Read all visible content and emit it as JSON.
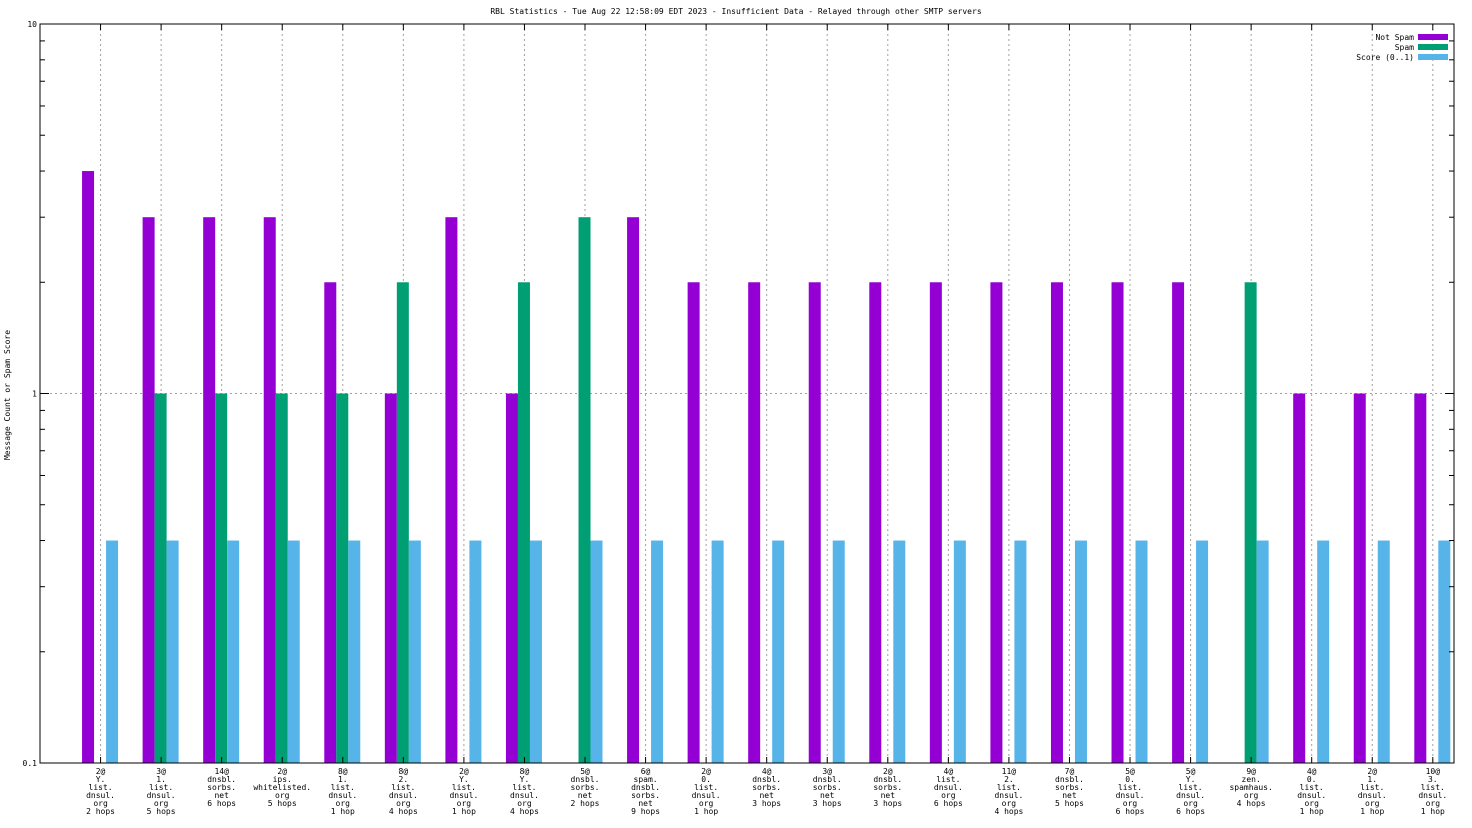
{
  "chart_data": {
    "type": "bar",
    "title": "RBL Statistics - Tue Aug 22 12:58:09 EDT 2023 - Insufficient Data - Relayed through other SMTP servers",
    "xlabel": "",
    "ylabel": "Message Count or Spam Score",
    "yscale": "log",
    "ylim": [
      0.1,
      10
    ],
    "yticks": [
      "0.1",
      "1",
      "10"
    ],
    "grid": true,
    "legend_position": "top-right",
    "colors": {
      "not_spam": "#9400d3",
      "spam": "#009e73",
      "score": "#56b4e9"
    },
    "categories": [
      [
        "2@",
        "Y.",
        "list.",
        "dnsul.",
        "org",
        "2 hops"
      ],
      [
        "3@",
        "1.",
        "list.",
        "dnsul.",
        "org",
        "5 hops"
      ],
      [
        "14@",
        "dnsbl.",
        "sorbs.",
        "net",
        "6 hops"
      ],
      [
        "2@",
        "ips.",
        "whitelisted.",
        "org",
        "5 hops"
      ],
      [
        "8@",
        "1.",
        "list.",
        "dnsul.",
        "org",
        "1 hop"
      ],
      [
        "8@",
        "2.",
        "list.",
        "dnsul.",
        "org",
        "4 hops"
      ],
      [
        "2@",
        "Y.",
        "list.",
        "dnsul.",
        "org",
        "1 hop"
      ],
      [
        "8@",
        "Y.",
        "list.",
        "dnsul.",
        "org",
        "4 hops"
      ],
      [
        "5@",
        "dnsbl.",
        "sorbs.",
        "net",
        "2 hops"
      ],
      [
        "6@",
        "spam.",
        "dnsbl.",
        "sorbs.",
        "net",
        "9 hops"
      ],
      [
        "2@",
        "0.",
        "list.",
        "dnsul.",
        "org",
        "1 hop"
      ],
      [
        "4@",
        "dnsbl.",
        "sorbs.",
        "net",
        "3 hops"
      ],
      [
        "3@",
        "dnsbl.",
        "sorbs.",
        "net",
        "3 hops"
      ],
      [
        "2@",
        "dnsbl.",
        "sorbs.",
        "net",
        "3 hops"
      ],
      [
        "4@",
        "list.",
        "dnsul.",
        "org",
        "6 hops"
      ],
      [
        "11@",
        "2.",
        "list.",
        "dnsul.",
        "org",
        "4 hops"
      ],
      [
        "7@",
        "dnsbl.",
        "sorbs.",
        "net",
        "5 hops"
      ],
      [
        "5@",
        "0.",
        "list.",
        "dnsul.",
        "org",
        "6 hops"
      ],
      [
        "5@",
        "Y.",
        "list.",
        "dnsul.",
        "org",
        "6 hops"
      ],
      [
        "9@",
        "zen.",
        "spamhaus.",
        "org",
        "4 hops"
      ],
      [
        "4@",
        "0.",
        "list.",
        "dnsul.",
        "org",
        "1 hop"
      ],
      [
        "2@",
        "1.",
        "list.",
        "dnsul.",
        "org",
        "1 hop"
      ],
      [
        "10@",
        "3.",
        "list.",
        "dnsul.",
        "org",
        "1 hop"
      ]
    ],
    "series": [
      {
        "name": "Not Spam",
        "color": "#9400d3",
        "values": [
          4,
          3,
          3,
          3,
          2,
          1,
          3,
          1,
          0,
          3,
          2,
          2,
          2,
          2,
          2,
          2,
          2,
          2,
          2,
          0,
          1,
          1,
          1
        ]
      },
      {
        "name": "Spam",
        "color": "#009e73",
        "values": [
          0,
          1,
          1,
          1,
          1,
          2,
          0,
          2,
          3,
          0,
          0,
          0,
          0,
          0,
          0,
          0,
          0,
          0,
          0,
          2,
          0,
          0,
          0
        ]
      },
      {
        "name": "Score (0..1)",
        "color": "#56b4e9",
        "values": [
          0.4,
          0.4,
          0.4,
          0.4,
          0.4,
          0.4,
          0.4,
          0.4,
          0.4,
          0.4,
          0.4,
          0.4,
          0.4,
          0.4,
          0.4,
          0.4,
          0.4,
          0.4,
          0.4,
          0.4,
          0.4,
          0.4,
          0.4
        ]
      }
    ]
  }
}
